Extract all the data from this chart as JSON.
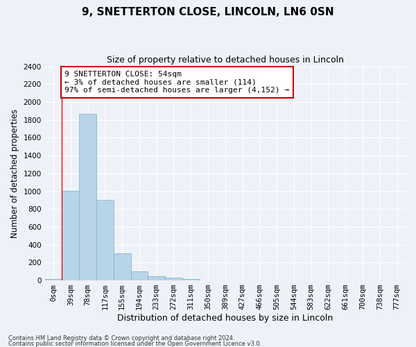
{
  "title": "9, SNETTERTON CLOSE, LINCOLN, LN6 0SN",
  "subtitle": "Size of property relative to detached houses in Lincoln",
  "xlabel": "Distribution of detached houses by size in Lincoln",
  "ylabel": "Number of detached properties",
  "bar_color": "#b8d4e8",
  "bar_edge_color": "#7aafc8",
  "background_color": "#eef2f8",
  "grid_color": "#ffffff",
  "categories": [
    "0sqm",
    "39sqm",
    "78sqm",
    "117sqm",
    "155sqm",
    "194sqm",
    "233sqm",
    "272sqm",
    "311sqm",
    "350sqm",
    "389sqm",
    "427sqm",
    "466sqm",
    "505sqm",
    "544sqm",
    "583sqm",
    "622sqm",
    "661sqm",
    "700sqm",
    "738sqm",
    "777sqm"
  ],
  "values": [
    15,
    1005,
    1865,
    900,
    305,
    105,
    50,
    30,
    20,
    0,
    0,
    0,
    0,
    0,
    0,
    0,
    0,
    0,
    0,
    0,
    0
  ],
  "ylim": [
    0,
    2400
  ],
  "yticks": [
    0,
    200,
    400,
    600,
    800,
    1000,
    1200,
    1400,
    1600,
    1800,
    2000,
    2200,
    2400
  ],
  "property_line_x": 1,
  "annotation_line1": "9 SNETTERTON CLOSE: 54sqm",
  "annotation_line2": "← 3% of detached houses are smaller (114)",
  "annotation_line3": "97% of semi-detached houses are larger (4,152) →",
  "annotation_box_color": "#ffffff",
  "annotation_border_color": "#cc0000",
  "footer_line1": "Contains HM Land Registry data © Crown copyright and database right 2024.",
  "footer_line2": "Contains public sector information licensed under the Open Government Licence v3.0.",
  "title_fontsize": 11,
  "subtitle_fontsize": 9,
  "tick_fontsize": 7.5,
  "ylabel_fontsize": 8.5,
  "xlabel_fontsize": 9,
  "annotation_fontsize": 8,
  "footer_fontsize": 6
}
